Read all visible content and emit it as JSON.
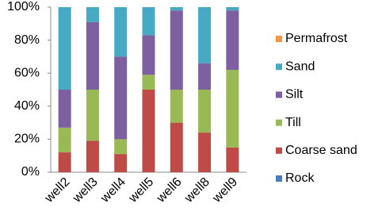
{
  "chart_data": {
    "type": "stacked_bar",
    "categories": [
      "well2",
      "well3",
      "well4",
      "well5",
      "well6",
      "well8",
      "well9"
    ],
    "series": [
      {
        "name": "Rock",
        "color": "#4a7ebb",
        "values": [
          0,
          0,
          0,
          0,
          0,
          0,
          0
        ]
      },
      {
        "name": "Coarse sand",
        "color": "#be4b48",
        "values": [
          12,
          19,
          11,
          50,
          30,
          24,
          15
        ]
      },
      {
        "name": "Till",
        "color": "#98b954",
        "values": [
          15,
          31,
          9,
          9,
          20,
          26,
          47
        ]
      },
      {
        "name": "Silt",
        "color": "#7d60a0",
        "values": [
          23,
          41,
          50,
          24,
          48,
          16,
          36
        ]
      },
      {
        "name": "Sand",
        "color": "#46aac5",
        "values": [
          50,
          9,
          30,
          17,
          2,
          34,
          2
        ]
      },
      {
        "name": "Permafrost",
        "color": "#f79646",
        "values": [
          0,
          0,
          0,
          0,
          0,
          0,
          0
        ]
      }
    ],
    "ylim": [
      0,
      100
    ],
    "yticks": [
      {
        "value": 0,
        "label": "0%"
      },
      {
        "value": 20,
        "label": "20%"
      },
      {
        "value": 40,
        "label": "40%"
      },
      {
        "value": 60,
        "label": "60%"
      },
      {
        "value": 80,
        "label": "80%"
      },
      {
        "value": 100,
        "label": "100%"
      }
    ],
    "grid": false,
    "legend": "right"
  }
}
